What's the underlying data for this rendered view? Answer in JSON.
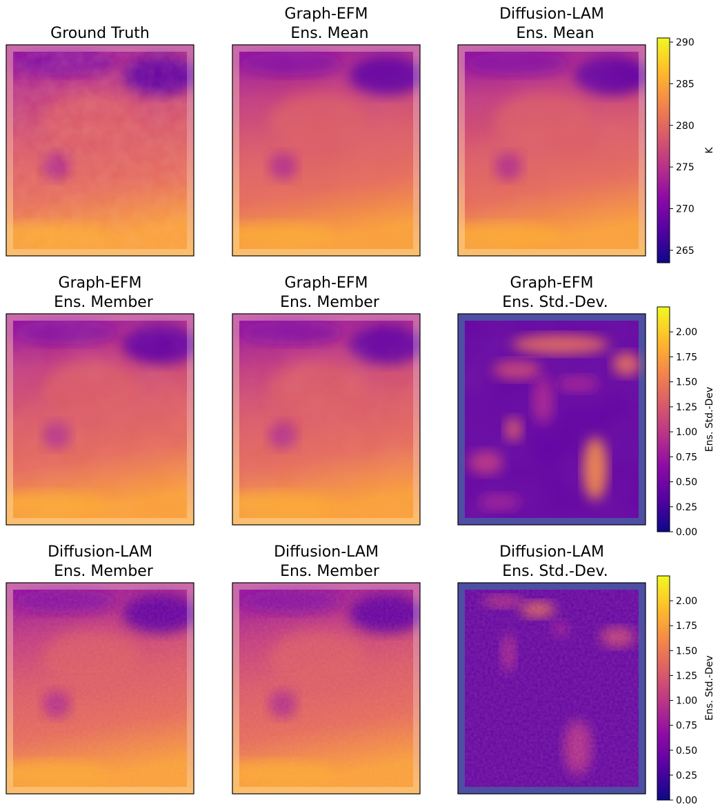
{
  "figure": {
    "colormap": "plasma",
    "colormap_stops": [
      "#0d0887",
      "#5302a3",
      "#8b0aa5",
      "#b83289",
      "#db5c68",
      "#f48849",
      "#febd2a",
      "#f0f921"
    ]
  },
  "chart_data": {
    "type": "heatmap",
    "panels": [
      {
        "title_line1": "Ground Truth",
        "title_line2": "",
        "field": "temperature",
        "style": "truth"
      },
      {
        "title_line1": "Graph-EFM",
        "title_line2": "Ens. Mean",
        "field": "temperature",
        "style": "smooth"
      },
      {
        "title_line1": "Diffusion-LAM",
        "title_line2": "Ens. Mean",
        "field": "temperature",
        "style": "smooth"
      },
      {
        "title_line1": "Graph-EFM",
        "title_line2": "Ens. Member",
        "field": "temperature",
        "style": "member"
      },
      {
        "title_line1": "Graph-EFM",
        "title_line2": "Ens. Member",
        "field": "temperature",
        "style": "member2"
      },
      {
        "title_line1": "Graph-EFM",
        "title_line2": "Ens. Std.-Dev.",
        "field": "std",
        "style": "std_efm"
      },
      {
        "title_line1": "Diffusion-LAM",
        "title_line2": "Ens. Member",
        "field": "temperature",
        "style": "noisy"
      },
      {
        "title_line1": "Diffusion-LAM",
        "title_line2": "Ens. Member",
        "field": "temperature",
        "style": "noisy2"
      },
      {
        "title_line1": "Diffusion-LAM",
        "title_line2": "Ens. Std.-Dev.",
        "field": "std",
        "style": "std_diff"
      }
    ],
    "colorbars": [
      {
        "label": "K",
        "ylim": [
          263.5,
          290.5
        ],
        "ticks": [
          "290",
          "285",
          "280",
          "275",
          "270",
          "265"
        ],
        "tick_values": [
          290,
          285,
          280,
          275,
          270,
          265
        ]
      },
      {
        "label": "Ens. Std.-Dev",
        "ylim": [
          0.0,
          2.25
        ],
        "ticks": [
          "2.00",
          "1.75",
          "1.50",
          "1.25",
          "1.00",
          "0.75",
          "0.50",
          "0.25",
          "0.00"
        ],
        "tick_values": [
          2.0,
          1.75,
          1.5,
          1.25,
          1.0,
          0.75,
          0.5,
          0.25,
          0.0
        ]
      },
      {
        "label": "Ens. Std.-Dev",
        "ylim": [
          0.0,
          2.25
        ],
        "ticks": [
          "2.00",
          "1.75",
          "1.50",
          "1.25",
          "1.00",
          "0.75",
          "0.50",
          "0.25",
          "0.00"
        ],
        "tick_values": [
          2.0,
          1.75,
          1.5,
          1.25,
          1.0,
          0.75,
          0.5,
          0.25,
          0.0
        ]
      }
    ]
  }
}
